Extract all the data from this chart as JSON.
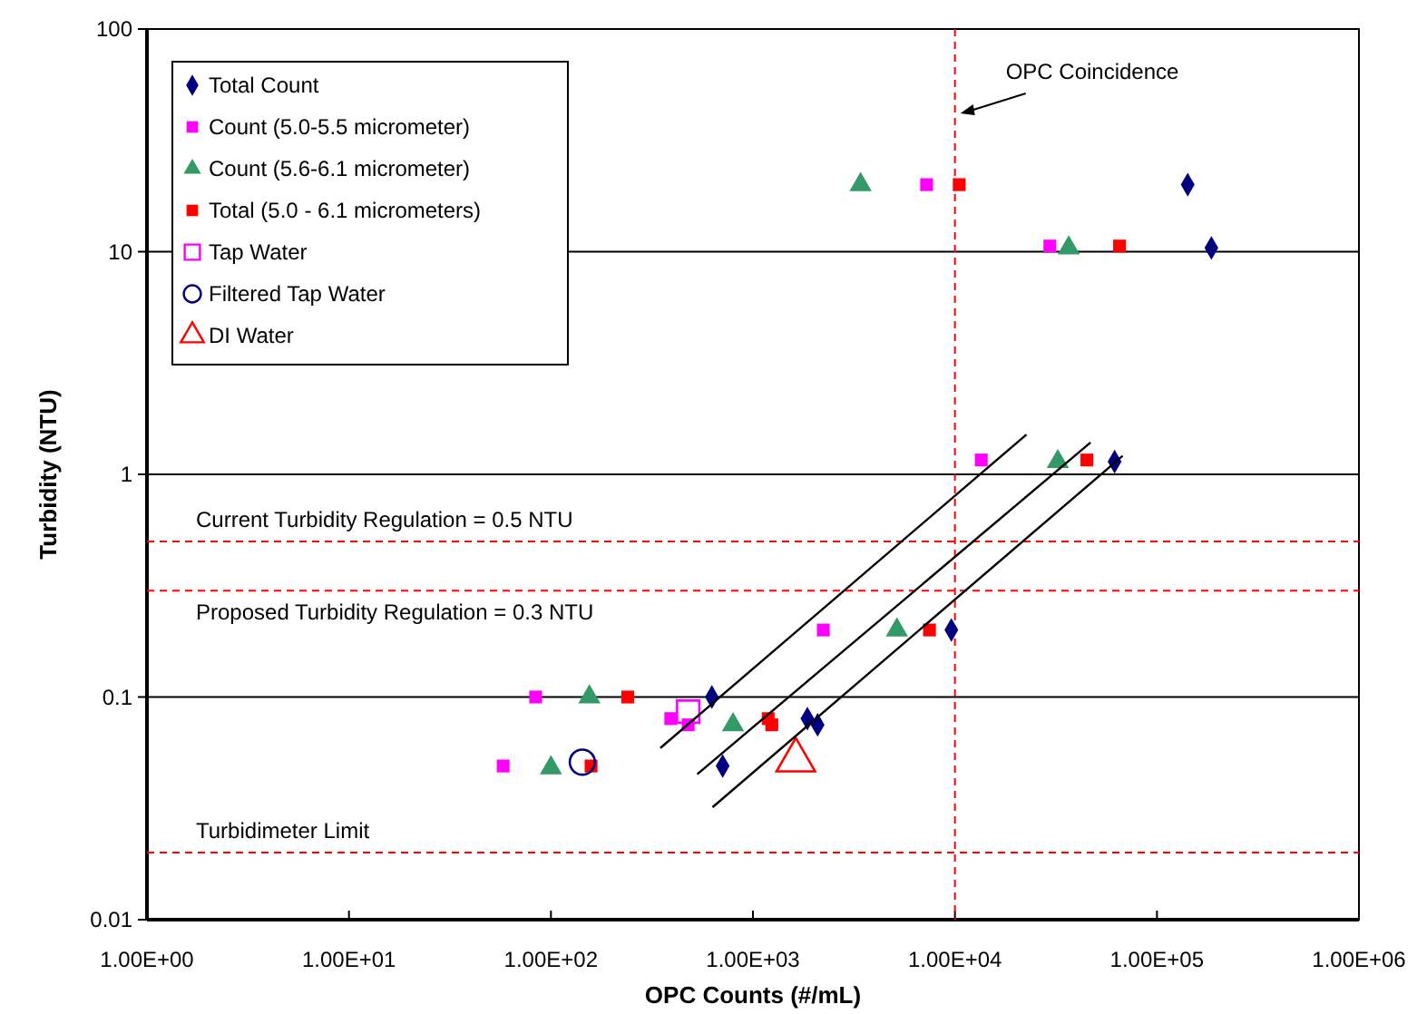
{
  "chart_data": {
    "type": "scatter",
    "xlabel": "OPC Counts (#/mL)",
    "ylabel": "Turbidity (NTU)",
    "log": "xy",
    "grid": "y",
    "legend": "top left",
    "xlim": [
      1,
      1000000
    ],
    "ylim": [
      0.01,
      100
    ],
    "xticks": [
      {
        "value": 1,
        "label": "1.00E+00"
      },
      {
        "value": 10,
        "label": "1.00E+01"
      },
      {
        "value": 100,
        "label": "1.00E+02"
      },
      {
        "value": 1000,
        "label": "1.00E+03"
      },
      {
        "value": 10000,
        "label": "1.00E+04"
      },
      {
        "value": 100000,
        "label": "1.00E+05"
      },
      {
        "value": 1000000,
        "label": "1.00E+06"
      }
    ],
    "yticks": [
      0.01,
      0.1,
      1,
      10,
      100
    ],
    "series": [
      {
        "name": "Total Count",
        "color": "#000080",
        "marker": "diamond",
        "x": [
          142000,
          186000,
          61700,
          9600,
          626,
          708,
          1860,
          2090
        ],
        "values": [
          20,
          10.4,
          1.14,
          0.2,
          0.1,
          0.049,
          0.08,
          0.075
        ]
      },
      {
        "name": "Count (5.0-5.5 micrometer)",
        "color": "#ff00ff",
        "marker": "square",
        "x": [
          7240,
          29500,
          13500,
          2230,
          84,
          58,
          392,
          478
        ],
        "values": [
          20,
          10.6,
          1.16,
          0.2,
          0.1,
          0.049,
          0.08,
          0.075
        ]
      },
      {
        "name": "Count (5.6-6.1 micrometer)",
        "color": "#339966",
        "marker": "triangle",
        "x": [
          3410,
          36600,
          32300,
          5160,
          155,
          100,
          797
        ],
        "values": [
          20,
          10.4,
          1.14,
          0.2,
          0.1,
          0.048,
          0.075
        ]
      },
      {
        "name": "Total (5.0 - 6.1 micrometers)",
        "color": "#ff0000",
        "marker": "square",
        "x": [
          10500,
          65300,
          45000,
          7480,
          240,
          158,
          1190,
          1240
        ],
        "values": [
          20,
          10.6,
          1.16,
          0.2,
          0.1,
          0.049,
          0.08,
          0.075
        ]
      },
      {
        "name": "Tap Water",
        "color": "#ff00ff",
        "marker": "square",
        "x": [
          478
        ],
        "values": [
          0.086
        ]
      },
      {
        "name": "Filtered Tap Water",
        "color": "#000080",
        "marker": "circle",
        "x": [
          143
        ],
        "values": [
          0.051
        ]
      },
      {
        "name": "DI Water",
        "color": "#ff0000",
        "marker": "triangle",
        "x": [
          1630
        ],
        "values": [
          0.052
        ]
      },
      {
        "type": "line",
        "color": "#000000",
        "marker": "none",
        "x": [
          348,
          22600
        ],
        "values": [
          0.059,
          1.51
        ]
      },
      {
        "type": "line",
        "color": "#000000",
        "marker": "none",
        "x": [
          530,
          46900
        ],
        "values": [
          0.045,
          1.39
        ]
      },
      {
        "type": "line",
        "color": "#000000",
        "marker": "none",
        "x": [
          631,
          67600
        ],
        "values": [
          0.032,
          1.21
        ]
      }
    ],
    "ref_lines": [
      {
        "axis": "y",
        "value": 0.5,
        "label": "Current Turbidity Regulation = 0.5 NTU",
        "color": "#ff0000",
        "line_style": "dashed"
      },
      {
        "axis": "y",
        "value": 0.3,
        "label": "Proposed Turbidity Regulation = 0.3 NTU",
        "color": "#ff0000",
        "line_style": "dashed"
      },
      {
        "axis": "y",
        "value": 0.02,
        "label": "Turbidimeter Limit",
        "color": "#ff0000",
        "line_style": "dashed"
      },
      {
        "axis": "x",
        "value": 10000,
        "color": "#ff0000",
        "line_style": "dashed"
      }
    ],
    "annotations": [
      {
        "text": "OPC Coincidence",
        "x": 10000,
        "y": 41
      }
    ]
  }
}
